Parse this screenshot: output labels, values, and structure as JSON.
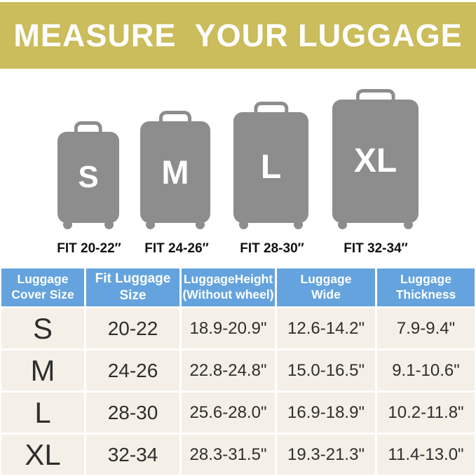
{
  "banner": {
    "title": "MEASURE  YOUR LUGGAGE"
  },
  "sizes": {
    "s": {
      "letter": "S",
      "fit": "FIT 20-22″"
    },
    "m": {
      "letter": "M",
      "fit": "FIT 24-26″"
    },
    "l": {
      "letter": "L",
      "fit": "FIT 28-30″"
    },
    "xl": {
      "letter": "XL",
      "fit": "FIT 32-34″"
    }
  },
  "table": {
    "headers": {
      "cover_size": "Luggage\nCover Size",
      "fit_size": "Fit Luggage Size",
      "height": "LuggageHeight\n(Without wheel)",
      "wide": "Luggage\nWide",
      "thickness": "Luggage\nThickness"
    },
    "rows": [
      {
        "size": "S",
        "fit": "20-22",
        "height": "18.9-20.9\"",
        "wide": "12.6-14.2\"",
        "thickness": "7.9-9.4\""
      },
      {
        "size": "M",
        "fit": "24-26",
        "height": "22.8-24.8\"",
        "wide": "15.0-16.5\"",
        "thickness": "9.1-10.6\""
      },
      {
        "size": "L",
        "fit": "28-30",
        "height": "25.6-28.0\"",
        "wide": "16.9-18.9\"",
        "thickness": "10.2-11.8\""
      },
      {
        "size": "XL",
        "fit": "32-34",
        "height": "28.3-31.5\"",
        "wide": "19.3-21.3\"",
        "thickness": "11.4-13.0\""
      }
    ]
  },
  "colors": {
    "banner_bg": "#cbbc5c",
    "header_bg": "#64a3dd",
    "row_bg": "#f5f0e7",
    "suitcase_gray": "#8d8d8d",
    "text_dark": "#2e2e2e"
  }
}
